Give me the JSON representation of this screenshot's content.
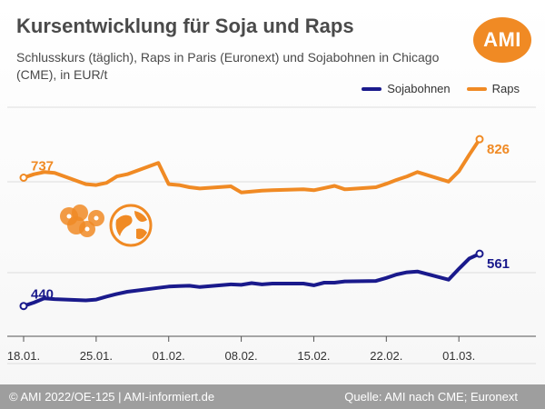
{
  "header": {
    "title": "Kursentwicklung für Soja und Raps",
    "subtitle": "Schlusskurs (täglich), Raps in Paris (Euronext) und Sojabohnen in Chicago (CME), in EUR/t",
    "logo_text": "AMI"
  },
  "footer": {
    "left": "© AMI 2022/OE-125 | AMI-informiert.de",
    "right": "Quelle: AMI nach CME; Euronext"
  },
  "colors": {
    "soja": "#1a1a8c",
    "raps": "#f08a24",
    "grid": "#dddddd",
    "text": "#4a4a4a"
  },
  "decor": [
    "flower-icon",
    "globe-icon"
  ],
  "chart_data": {
    "type": "line",
    "title": "Kursentwicklung für Soja und Raps",
    "subtitle": "Schlusskurs (täglich), Raps in Paris (Euronext) und Sojabohnen in Chicago (CME), in EUR/t",
    "xlabel": "",
    "ylabel": "",
    "x_ticks": [
      "18.01.",
      "25.01.",
      "01.02.",
      "08.02.",
      "15.02.",
      "22.02.",
      "01.03."
    ],
    "x_range": [
      "2022-01-18",
      "2022-03-03"
    ],
    "ylim": [
      370,
      900
    ],
    "grid": "horizontal",
    "legend": "top-right",
    "series": [
      {
        "name": "Sojabohnen",
        "color": "#1a1a8c",
        "start_label": "440",
        "end_label": "561",
        "points": [
          [
            "2022-01-18",
            440
          ],
          [
            "2022-01-19",
            448
          ],
          [
            "2022-01-20",
            458
          ],
          [
            "2022-01-21",
            456
          ],
          [
            "2022-01-24",
            453
          ],
          [
            "2022-01-25",
            455
          ],
          [
            "2022-01-26",
            462
          ],
          [
            "2022-01-27",
            468
          ],
          [
            "2022-01-28",
            473
          ],
          [
            "2022-01-31",
            482
          ],
          [
            "2022-02-01",
            485
          ],
          [
            "2022-02-02",
            486
          ],
          [
            "2022-02-03",
            487
          ],
          [
            "2022-02-04",
            484
          ],
          [
            "2022-02-07",
            490
          ],
          [
            "2022-02-08",
            489
          ],
          [
            "2022-02-09",
            493
          ],
          [
            "2022-02-10",
            490
          ],
          [
            "2022-02-11",
            492
          ],
          [
            "2022-02-14",
            492
          ],
          [
            "2022-02-15",
            488
          ],
          [
            "2022-02-16",
            494
          ],
          [
            "2022-02-17",
            494
          ],
          [
            "2022-02-18",
            497
          ],
          [
            "2022-02-21",
            498
          ],
          [
            "2022-02-22",
            505
          ],
          [
            "2022-02-23",
            513
          ],
          [
            "2022-02-24",
            518
          ],
          [
            "2022-02-25",
            520
          ],
          [
            "2022-02-28",
            501
          ],
          [
            "2022-03-01",
            526
          ],
          [
            "2022-03-02",
            550
          ],
          [
            "2022-03-03",
            561
          ]
        ]
      },
      {
        "name": "Raps",
        "color": "#f08a24",
        "start_label": "737",
        "end_label": "826",
        "points": [
          [
            "2022-01-18",
            737
          ],
          [
            "2022-01-19",
            745
          ],
          [
            "2022-01-20",
            750
          ],
          [
            "2022-01-21",
            748
          ],
          [
            "2022-01-24",
            722
          ],
          [
            "2022-01-25",
            720
          ],
          [
            "2022-01-26",
            725
          ],
          [
            "2022-01-27",
            740
          ],
          [
            "2022-01-28",
            745
          ],
          [
            "2022-01-31",
            771
          ],
          [
            "2022-02-01",
            722
          ],
          [
            "2022-02-02",
            720
          ],
          [
            "2022-02-03",
            715
          ],
          [
            "2022-02-04",
            712
          ],
          [
            "2022-02-07",
            717
          ],
          [
            "2022-02-08",
            703
          ],
          [
            "2022-02-09",
            705
          ],
          [
            "2022-02-10",
            707
          ],
          [
            "2022-02-11",
            708
          ],
          [
            "2022-02-14",
            710
          ],
          [
            "2022-02-15",
            708
          ],
          [
            "2022-02-16",
            713
          ],
          [
            "2022-02-17",
            718
          ],
          [
            "2022-02-18",
            710
          ],
          [
            "2022-02-21",
            715
          ],
          [
            "2022-02-22",
            723
          ],
          [
            "2022-02-23",
            732
          ],
          [
            "2022-02-24",
            740
          ],
          [
            "2022-02-25",
            750
          ],
          [
            "2022-02-28",
            728
          ],
          [
            "2022-03-01",
            752
          ],
          [
            "2022-03-02",
            790
          ],
          [
            "2022-03-03",
            826
          ]
        ]
      }
    ]
  }
}
